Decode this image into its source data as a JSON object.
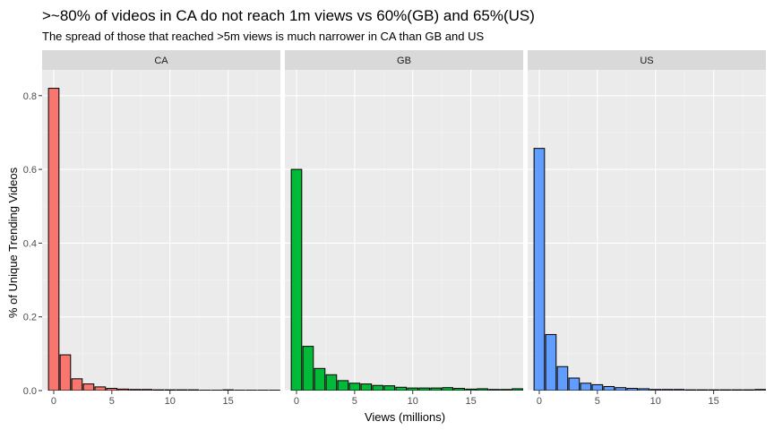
{
  "chart_data": {
    "type": "bar",
    "title": ">~80% of videos in CA do not reach 1m views vs 60%(GB) and 65%(US)",
    "subtitle": "The spread of those that reached >5m views is  much narrower in CA than GB and US",
    "xlabel": "Views (millions)",
    "ylabel": "% of Unique Trending Videos",
    "xlim": [
      -1,
      19.5
    ],
    "ylim": [
      0,
      0.87
    ],
    "x_ticks": [
      0,
      5,
      10,
      15
    ],
    "y_ticks": [
      0.0,
      0.2,
      0.4,
      0.6,
      0.8
    ],
    "x_tick_labels": [
      "0",
      "5",
      "10",
      "15"
    ],
    "y_tick_labels": [
      "0.0",
      "0.2",
      "0.4",
      "0.6",
      "0.8"
    ],
    "bin_width": 1,
    "grid": true,
    "legend": "none",
    "panels": [
      {
        "name": "CA",
        "color": "#F8766D",
        "x": [
          0,
          1,
          2,
          3,
          4,
          5,
          6,
          7,
          8,
          9,
          10,
          11,
          12,
          13,
          14,
          15,
          16,
          17,
          18,
          19
        ],
        "values": [
          0.82,
          0.097,
          0.032,
          0.018,
          0.01,
          0.006,
          0.004,
          0.003,
          0.003,
          0.002,
          0.002,
          0.002,
          0.002,
          0.001,
          0.001,
          0.002,
          0.001,
          0.001,
          0.001,
          0.001
        ]
      },
      {
        "name": "GB",
        "color": "#00BA38",
        "x": [
          0,
          1,
          2,
          3,
          4,
          5,
          6,
          7,
          8,
          9,
          10,
          11,
          12,
          13,
          14,
          15,
          16,
          17,
          18,
          19
        ],
        "values": [
          0.6,
          0.12,
          0.06,
          0.043,
          0.027,
          0.02,
          0.018,
          0.014,
          0.013,
          0.009,
          0.007,
          0.007,
          0.007,
          0.008,
          0.006,
          0.004,
          0.005,
          0.003,
          0.003,
          0.005
        ]
      },
      {
        "name": "US",
        "color": "#619CFF",
        "x": [
          0,
          1,
          2,
          3,
          4,
          5,
          6,
          7,
          8,
          9,
          10,
          11,
          12,
          13,
          14,
          15,
          16,
          17,
          18,
          19
        ],
        "values": [
          0.657,
          0.152,
          0.065,
          0.034,
          0.02,
          0.016,
          0.011,
          0.008,
          0.006,
          0.005,
          0.003,
          0.003,
          0.003,
          0.002,
          0.002,
          0.002,
          0.002,
          0.002,
          0.002,
          0.003
        ]
      }
    ]
  }
}
